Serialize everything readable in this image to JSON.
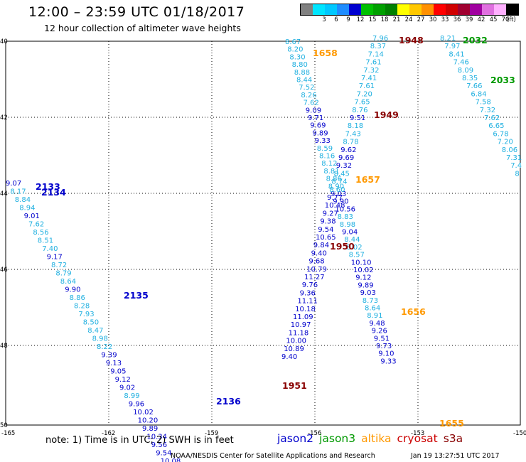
{
  "header": {
    "title": "12:00 – 23:59 UTC 01/18/2017",
    "subtitle": "12 hour collection of altimeter wave heights",
    "scale_unit": "(ft)"
  },
  "scale": [
    {
      "label": "",
      "color": "#808080"
    },
    {
      "label": "3",
      "color": "#00e5ff"
    },
    {
      "label": "6",
      "color": "#00c8ff"
    },
    {
      "label": "9",
      "color": "#1e8cff"
    },
    {
      "label": "12",
      "color": "#0000d0"
    },
    {
      "label": "15",
      "color": "#00c000"
    },
    {
      "label": "18",
      "color": "#00a000"
    },
    {
      "label": "21",
      "color": "#008000"
    },
    {
      "label": "24",
      "color": "#ffff00"
    },
    {
      "label": "27",
      "color": "#ffc800"
    },
    {
      "label": "30",
      "color": "#ff9000"
    },
    {
      "label": "33",
      "color": "#ff0000"
    },
    {
      "label": "36",
      "color": "#d00000"
    },
    {
      "label": "39",
      "color": "#a00030"
    },
    {
      "label": "42",
      "color": "#a000a0"
    },
    {
      "label": "45",
      "color": "#e070e0"
    },
    {
      "label": "70",
      "color": "#ffb0ff"
    },
    {
      "label": "",
      "color": "#000000"
    }
  ],
  "axes": {
    "lon_labels": [
      "-165",
      "-162",
      "-159",
      "-156",
      "-153",
      "-150"
    ],
    "lat_labels": [
      "40",
      "42",
      "44",
      "46",
      "48",
      "50"
    ]
  },
  "colors": {
    "jason2": "#0000cc",
    "jason3": "#009900",
    "altika": "#ff9900",
    "cryosat": "#cc0000",
    "s3a": "#880000",
    "light": "#20b0e0"
  },
  "tracks": [
    {
      "sat": "light",
      "start": [
        401,
        62
      ],
      "step": [
        3.2,
        10.7
      ],
      "values": [
        "8.67",
        "8.20",
        "8.30",
        "8.80",
        "8.88",
        "8.44",
        "7.52",
        "8.26",
        "7.62",
        "9.09",
        "9.71",
        "9.69",
        "9.89",
        "9.33",
        "8.59",
        "8.16",
        "8.12",
        "8.81",
        "8.86",
        "8.90",
        "9.03",
        "9.90",
        "10.56",
        "8.83",
        "8.98",
        "9.04",
        "8.44",
        "8.02",
        "8.57",
        "10.10",
        "10.02",
        "9.12",
        "9.89",
        "9.03",
        "8.73",
        "8.64",
        "8.91",
        "9.48",
        "9.26",
        "9.51",
        "9.73",
        "9.10",
        "9.33"
      ]
    },
    {
      "sat": "light",
      "start": [
        524,
        57
      ],
      "step": [
        -3.2,
        11.2
      ],
      "values": [
        "7.96",
        "8.37",
        "7.14",
        "7.61",
        "7.32",
        "7.41",
        "7.61",
        "7.20",
        "7.65",
        "8.76",
        "9.51",
        "8.18",
        "7.43",
        "8.78",
        "9.62",
        "9.69",
        "9.32",
        "8.45",
        "8.74",
        "8.60",
        "9.77",
        "10.48",
        "9.27",
        "9.38",
        "9.54",
        "10.65",
        "9.84",
        "9.40",
        "9.68",
        "10.79",
        "11.27",
        "9.76",
        "9.36",
        "11.11",
        "10.18",
        "11.09",
        "10.97",
        "11.18",
        "10.00",
        "10.89",
        "9.40"
      ]
    },
    {
      "sat": "light",
      "start": [
        8,
        261
      ],
      "step": [
        6.4,
        11.5
      ],
      "values": [
        "9.07",
        "8.17",
        "8.84",
        "8.94",
        "9.01",
        "7.62",
        "8.56",
        "8.51",
        "7.40",
        "9.17",
        "8.72",
        "8.79",
        "8.64",
        "9.90",
        "8.86",
        "8.28",
        "7.93",
        "8.50",
        "8.47",
        "8.98",
        "8.22",
        "9.39",
        "9.13",
        "9.05",
        "9.12",
        "9.02",
        "8.99",
        "9.96",
        "10.02",
        "10.20",
        "9.89",
        "10.34",
        "9.56",
        "9.54",
        "10.08"
      ]
    },
    {
      "sat": "light",
      "start": [
        619,
        57
      ],
      "step": [
        6.2,
        11.2
      ],
      "values": [
        "8.21",
        "7.97",
        "8.41",
        "7.46",
        "8.09",
        "8.35",
        "7.66",
        "6.84",
        "7.58",
        "7.32",
        "7.62",
        "6.65",
        "6.78",
        "7.20",
        "8.06",
        "7.31",
        "7.4",
        "8"
      ]
    }
  ],
  "labels": [
    {
      "text": "1658",
      "sat": "altika"
    },
    {
      "text": "1948",
      "sat": "s3a"
    },
    {
      "text": "2032",
      "sat": "jason3"
    },
    {
      "text": "2033",
      "sat": "jason3"
    },
    {
      "text": "1949",
      "sat": "s3a"
    },
    {
      "text": "2133",
      "sat": "jason2"
    },
    {
      "text": "2134",
      "sat": "jason2"
    },
    {
      "text": "1657",
      "sat": "altika"
    },
    {
      "text": "1950",
      "sat": "s3a"
    },
    {
      "text": "2135",
      "sat": "jason2"
    },
    {
      "text": "1656",
      "sat": "altika"
    },
    {
      "text": "1951",
      "sat": "s3a"
    },
    {
      "text": "2136",
      "sat": "jason2"
    },
    {
      "text": "1655",
      "sat": "altika"
    }
  ],
  "footer": {
    "note": "note: 1) Time is in UTC; 2) SWH is in feet",
    "legend": [
      "jason2",
      "jason3",
      "altika",
      "cryosat",
      "s3a"
    ],
    "credit": "NOAA/NESDIS Center for Satellite Applications and Research",
    "timestamp": "Jan 19 13:27:51 UTC 2017"
  }
}
